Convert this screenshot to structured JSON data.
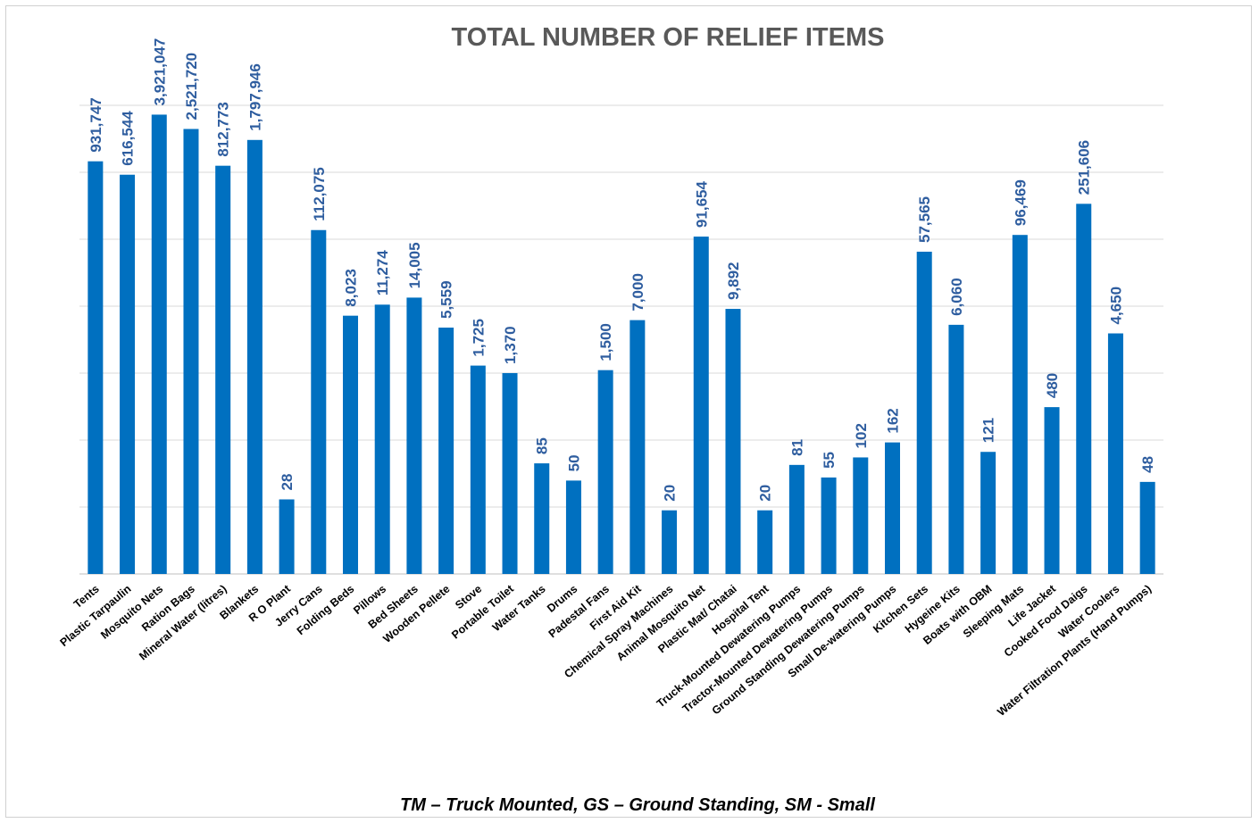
{
  "chart_data": {
    "type": "bar",
    "title": "TOTAL NUMBER OF RELIEF ITEMS",
    "note": "TM – Truck Mounted, GS – Ground Standing, SM - Small",
    "scale": "log",
    "grid": true,
    "legend": "none",
    "bar_color": "#0070c0",
    "label_color": "#2e5d9f",
    "categories": [
      "Tents",
      "Plastic Tarpaulin",
      "Mosquito Nets",
      "Ration Bags",
      "Mineral Water (litres)",
      "Blankets",
      "R O Plant",
      "Jerry Cans",
      "Folding Beds",
      "Pillows",
      "Bed Sheets",
      "Wooden Pellete",
      "Stove",
      "Portable Toilet",
      "Water Tanks",
      "Drums",
      "Padestal Fans",
      "First Aid Kit",
      "Chemical Spray Machines",
      "Animal Mosquito Net",
      "Plastic Mat/ Chatai",
      "Hospital Tent",
      "Truck-Mounted Dewatering Pumps",
      "Tractor-Mounted Dewatering Pumps",
      "Ground Standing Dewatering Pumps",
      "Small De-watering Pumps",
      "Kitchen Sets",
      "Hygeine Kits",
      "Boats with OBM",
      "Sleeping Mats",
      "Life Jacket",
      "Cooked Food Daigs",
      "Water Coolers",
      "Water Filtration Plants (Hand Pumps)"
    ],
    "values": [
      931747,
      616544,
      3921047,
      2521720,
      812773,
      1797946,
      28,
      112075,
      8023,
      11274,
      14005,
      5559,
      1725,
      1370,
      85,
      50,
      1500,
      7000,
      20,
      91654,
      9892,
      20,
      81,
      55,
      102,
      162,
      57565,
      6060,
      121,
      96469,
      480,
      251606,
      4650,
      48
    ],
    "labels": [
      "931,747",
      "616,544",
      "3,921,047",
      "2,521,720",
      "812,773",
      "1,797,946",
      "28",
      "112,075",
      "8,023",
      "11,274",
      "14,005",
      "5,559",
      "1,725",
      "1,370",
      "85",
      "50",
      "1,500",
      "7,000",
      "20",
      "91,654",
      "9,892",
      "20",
      "81",
      "55",
      "102",
      "162",
      "57,565",
      "6,060",
      "121",
      "96,469",
      "480",
      "251,606",
      "4,650",
      "48"
    ]
  }
}
